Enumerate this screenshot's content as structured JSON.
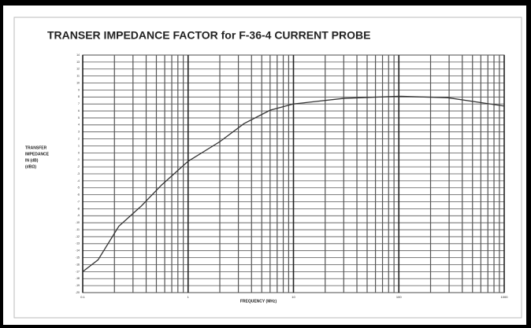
{
  "chart_data": {
    "type": "line",
    "title": "TRANSER IMPEDANCE FACTOR for F-36-4 CURRENT PROBE",
    "xlabel": "FREQUENCY (MHz)",
    "ylabel": [
      "TRANSFER",
      "IMPEDANCE",
      "IN (dB)",
      "(dBΩ)"
    ],
    "xscale": "log",
    "xlim": [
      0.1,
      1000
    ],
    "xticks": [
      0.1,
      1,
      10,
      100,
      1000
    ],
    "ylim": [
      -20,
      14
    ],
    "yticks": [
      -20,
      -19,
      -18,
      -17,
      -16,
      -15,
      -14,
      -13,
      -12,
      -11,
      -10,
      -9,
      -8,
      -7,
      -6,
      -5,
      -4,
      -3,
      -2,
      -1,
      0,
      1,
      2,
      3,
      4,
      5,
      6,
      7,
      8,
      9,
      10,
      11,
      12,
      13,
      14
    ],
    "grid": true,
    "x": [
      0.1,
      0.14,
      0.22,
      0.36,
      0.56,
      1,
      2,
      3.4,
      6,
      10,
      30,
      100,
      290,
      1000
    ],
    "series": [
      {
        "color": "#333333",
        "values": [
          -17.0,
          -15.3,
          -10.5,
          -7.6,
          -4.6,
          -1.2,
          1.6,
          4.2,
          6.1,
          7.0,
          7.8,
          8.1,
          7.9,
          6.7
        ]
      }
    ]
  }
}
